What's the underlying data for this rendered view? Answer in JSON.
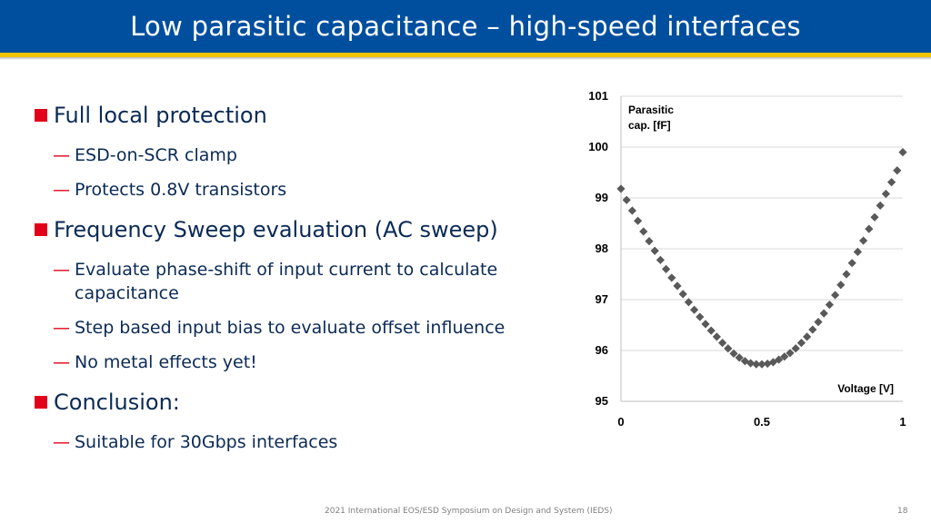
{
  "slide": {
    "title": "Low parasitic capacitance – high-speed interfaces",
    "footer": "2021 International EOS/ESD Symposium on Design and System (IEDS)",
    "page_number": "18"
  },
  "bullets": [
    {
      "text": "Full local protection",
      "subs": [
        "ESD-on-SCR clamp",
        "Protects 0.8V transistors"
      ]
    },
    {
      "text": "Frequency Sweep evaluation (AC sweep)",
      "subs": [
        "Evaluate phase-shift of input current to calculate capacitance",
        "Step based input bias to evaluate offset influence",
        "No metal effects yet!"
      ]
    },
    {
      "text": "Conclusion:",
      "subs": [
        "Suitable for 30Gbps interfaces"
      ]
    }
  ],
  "dash_glyph": "—",
  "colors": {
    "title_bar": "#004f9e",
    "accent_yellow": "#f5c400",
    "bullet_red": "#e2001a",
    "text_navy": "#0b2a55",
    "marker_gray": "#595959"
  },
  "chart_data": {
    "type": "scatter",
    "ylabel_lines": [
      "Parasitic",
      "cap. [fF]"
    ],
    "xlabel": "Voltage [V]",
    "xlim": [
      0,
      1
    ],
    "ylim": [
      95,
      101
    ],
    "x_ticks": [
      "0",
      "0.5",
      "1"
    ],
    "y_ticks": [
      "95",
      "96",
      "97",
      "98",
      "99",
      "100",
      "101"
    ],
    "grid": "horizontal",
    "marker": "diamond",
    "series": [
      {
        "x": [
          0.0,
          0.02,
          0.04,
          0.06,
          0.08,
          0.1,
          0.12,
          0.14,
          0.16,
          0.18,
          0.2,
          0.22,
          0.24,
          0.26,
          0.28,
          0.3,
          0.32,
          0.34,
          0.36,
          0.38,
          0.4,
          0.42,
          0.44,
          0.46,
          0.48,
          0.5,
          0.52,
          0.54,
          0.56,
          0.58,
          0.6,
          0.62,
          0.64,
          0.66,
          0.68,
          0.7,
          0.72,
          0.74,
          0.76,
          0.78,
          0.8,
          0.82,
          0.84,
          0.86,
          0.88,
          0.9,
          0.92,
          0.94,
          0.96,
          0.98,
          1.0
        ],
        "values": [
          99.18,
          98.96,
          98.75,
          98.55,
          98.34,
          98.15,
          97.96,
          97.78,
          97.6,
          97.43,
          97.27,
          97.11,
          96.95,
          96.8,
          96.66,
          96.52,
          96.39,
          96.27,
          96.15,
          96.04,
          95.94,
          95.86,
          95.79,
          95.75,
          95.73,
          95.73,
          95.74,
          95.77,
          95.82,
          95.88,
          95.95,
          96.04,
          96.15,
          96.27,
          96.41,
          96.56,
          96.73,
          96.9,
          97.09,
          97.29,
          97.5,
          97.72,
          97.94,
          98.16,
          98.39,
          98.62,
          98.85,
          99.08,
          99.31,
          99.54,
          99.9
        ]
      }
    ]
  }
}
